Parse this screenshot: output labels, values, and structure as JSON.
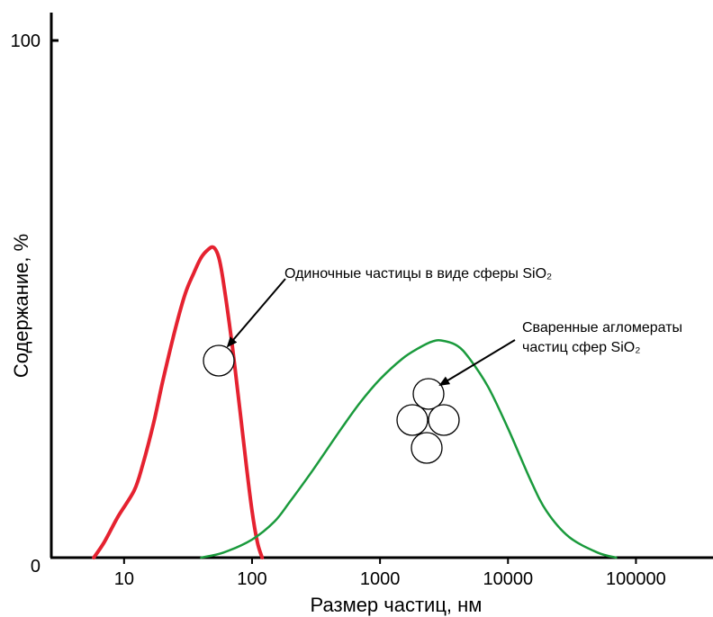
{
  "chart_data": {
    "type": "line",
    "title": "",
    "xlabel": "Размер частиц, нм",
    "ylabel": "Содержание, %",
    "x_scale": "log",
    "xlim": [
      2.7,
      400000
    ],
    "ylim": [
      0,
      100
    ],
    "x_ticks": [
      {
        "value": 10,
        "label": "10"
      },
      {
        "value": 100,
        "label": "100"
      },
      {
        "value": 1000,
        "label": "1000"
      },
      {
        "value": 10000,
        "label": "10000"
      },
      {
        "value": 100000,
        "label": "100000"
      }
    ],
    "y_ticks": [
      {
        "value": 0,
        "label": "0"
      },
      {
        "value": 100,
        "label": "100"
      }
    ],
    "grid": false,
    "legend": "none",
    "series": [
      {
        "color": "#e52230",
        "x": [
          5.8,
          7,
          9,
          12,
          14,
          17,
          20,
          25,
          30,
          35,
          40,
          45,
          50,
          55,
          60,
          70,
          80,
          90,
          100,
          110,
          120
        ],
        "y": [
          0,
          3,
          8,
          13,
          18,
          26,
          34,
          44,
          51,
          55,
          58,
          59.5,
          60,
          58,
          53,
          41,
          29,
          18,
          9,
          3,
          0
        ]
      },
      {
        "color": "#1a9a3c",
        "x": [
          40,
          60,
          100,
          150,
          200,
          300,
          500,
          700,
          1000,
          1500,
          2000,
          2500,
          3000,
          4000,
          5000,
          7000,
          10000,
          15000,
          20000,
          30000,
          50000,
          70000
        ],
        "y": [
          0,
          1,
          3.5,
          7,
          11,
          17,
          25,
          30,
          34.5,
          38.5,
          40.5,
          41.7,
          42,
          41,
          38.5,
          33,
          25,
          15,
          9,
          4,
          1,
          0
        ]
      }
    ],
    "annotations": [
      {
        "text": "Одиночные частицы в виде сферы SiO₂"
      },
      {
        "lines": [
          "Сваренные агломераты",
          "частиц сфер SiO₂"
        ]
      }
    ]
  }
}
